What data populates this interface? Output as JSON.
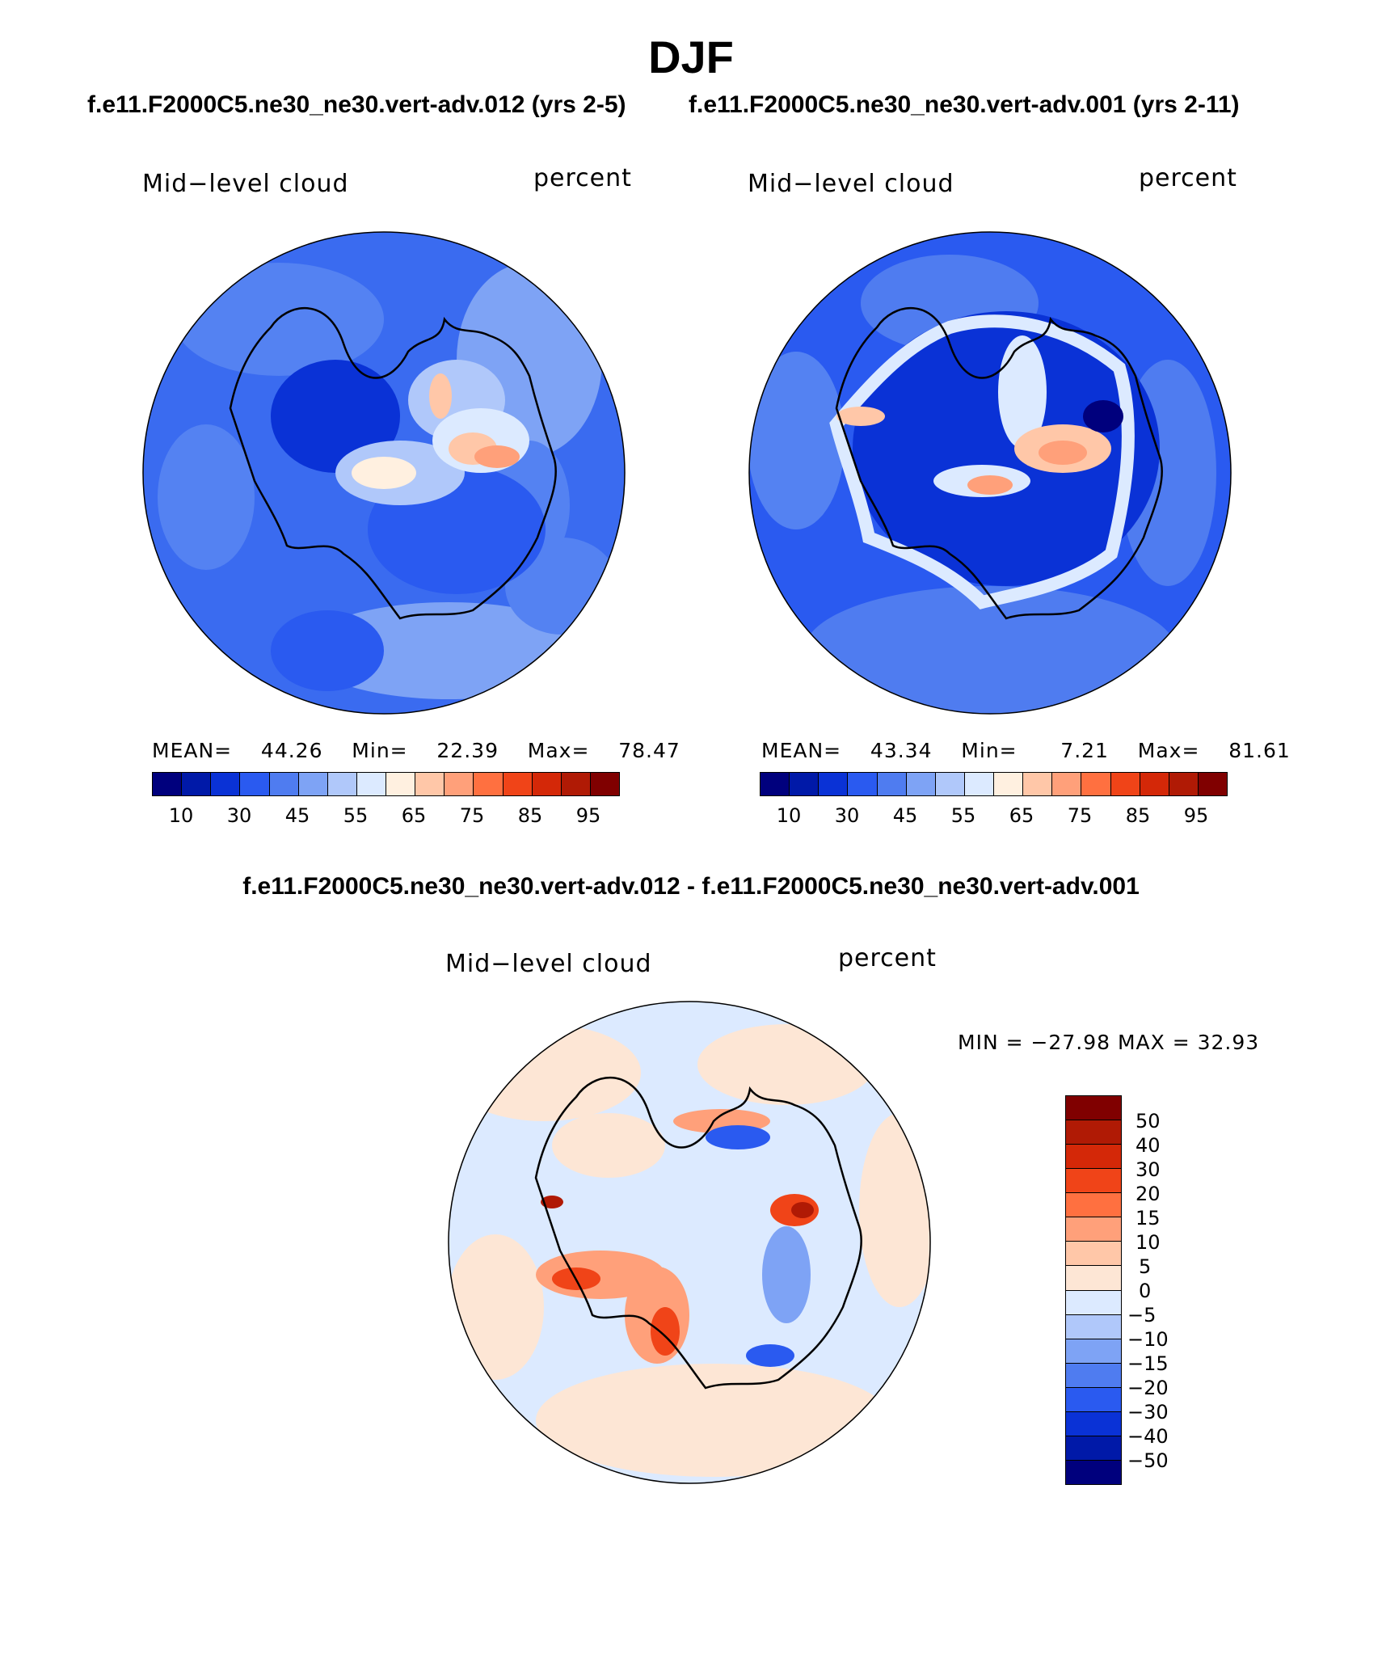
{
  "title": "DJF",
  "panel1": {
    "case_title": "f.e11.F2000C5.ne30_ne30.vert-adv.012 (yrs 2-5)",
    "left_label": "Mid−level cloud",
    "right_label": "percent",
    "stats": {
      "mean_label": "MEAN=",
      "mean": "44.26",
      "min_label": "Min=",
      "min": "22.39",
      "max_label": "Max=",
      "max": "78.47"
    },
    "colorbar_ticks": [
      "10",
      "30",
      "45",
      "55",
      "65",
      "75",
      "85",
      "95"
    ]
  },
  "panel2": {
    "case_title": "f.e11.F2000C5.ne30_ne30.vert-adv.001 (yrs 2-11)",
    "left_label": "Mid−level cloud",
    "right_label": "percent",
    "stats": {
      "mean_label": "MEAN=",
      "mean": "43.34",
      "min_label": "Min=",
      "min": "7.21",
      "max_label": "Max=",
      "max": "81.61"
    },
    "colorbar_ticks": [
      "10",
      "30",
      "45",
      "55",
      "65",
      "75",
      "85",
      "95"
    ]
  },
  "diff_panel": {
    "title": "f.e11.F2000C5.ne30_ne30.vert-adv.012 - f.e11.F2000C5.ne30_ne30.vert-adv.001",
    "left_label": "Mid−level cloud",
    "right_label": "percent",
    "minmax": "MIN = −27.98 MAX =   32.93",
    "colorbar_ticks": [
      "50",
      "40",
      "30",
      "20",
      "15",
      "10",
      "5",
      "0",
      "−5",
      "−10",
      "−15",
      "−20",
      "−30",
      "−40",
      "−50"
    ]
  },
  "colors": {
    "abs_palette": [
      "#00007d",
      "#0019a8",
      "#0a32d6",
      "#2a5af0",
      "#4f7cf0",
      "#7ea3f5",
      "#b0c8fa",
      "#dceaff",
      "#fff0e0",
      "#ffc7a8",
      "#ffa07a",
      "#ff7040",
      "#f04418",
      "#d42808",
      "#b01a05",
      "#800000"
    ],
    "diff_palette": [
      "#800000",
      "#b01a05",
      "#d42808",
      "#f04418",
      "#ff7040",
      "#ffa07a",
      "#ffc7a8",
      "#fde6d5",
      "#dceaff",
      "#b0c8fa",
      "#7ea3f5",
      "#4f7cf0",
      "#2a5af0",
      "#0a32d6",
      "#0019a8",
      "#00007d"
    ]
  }
}
